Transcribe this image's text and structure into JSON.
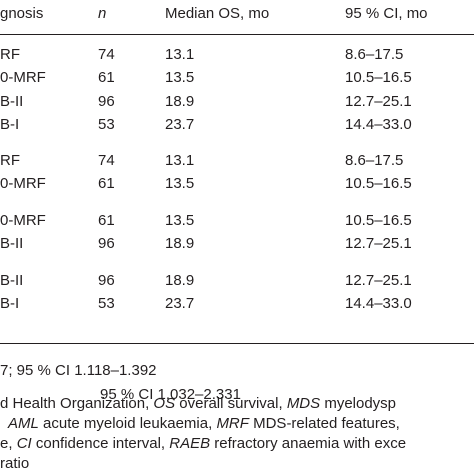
{
  "table": {
    "header": [
      "gnosis",
      "n",
      "Median OS, mo",
      "95 % CI, mo"
    ],
    "groups": [
      [
        [
          "RF",
          "74",
          "13.1",
          "8.6–17.5"
        ],
        [
          "0-MRF",
          "61",
          "13.5",
          "10.5–16.5"
        ],
        [
          "B-II",
          "96",
          "18.9",
          "12.7–25.1"
        ],
        [
          "B-I",
          "53",
          "23.7",
          "14.4–33.0"
        ]
      ],
      [
        [
          "RF",
          "74",
          "13.1",
          "8.6–17.5"
        ],
        [
          "0-MRF",
          "61",
          "13.5",
          "10.5–16.5"
        ]
      ],
      [
        [
          "0-MRF",
          "61",
          "13.5",
          "10.5–16.5"
        ],
        [
          "B-II",
          "96",
          "18.9",
          "12.7–25.1"
        ]
      ],
      [
        [
          "B-II",
          "96",
          "18.9",
          "12.7–25.1"
        ],
        [
          "B-I",
          "53",
          "23.7",
          "14.4–33.0"
        ]
      ]
    ]
  },
  "stats": [
    "7; 95 % CI 1.118–1.392",
    "95 % CI 1.032–2.331"
  ],
  "footnote": [
    [
      {
        "text": "d Health Organization, "
      },
      {
        "text": "OS",
        "italic": true
      },
      {
        "text": " overall survival, "
      },
      {
        "text": "MDS",
        "italic": true
      },
      {
        "text": " myelodysp"
      }
    ],
    [
      {
        "text": "AML",
        "italic": true
      },
      {
        "text": " acute myeloid leukaemia, "
      },
      {
        "text": "MRF",
        "italic": true
      },
      {
        "text": " MDS-related features,"
      }
    ],
    [
      {
        "text": "e, "
      },
      {
        "text": "CI",
        "italic": true
      },
      {
        "text": " confidence interval, "
      },
      {
        "text": "RAEB",
        "italic": true
      },
      {
        "text": " refractory anaemia with exce"
      }
    ],
    [
      {
        "text": "ratio"
      }
    ]
  ]
}
